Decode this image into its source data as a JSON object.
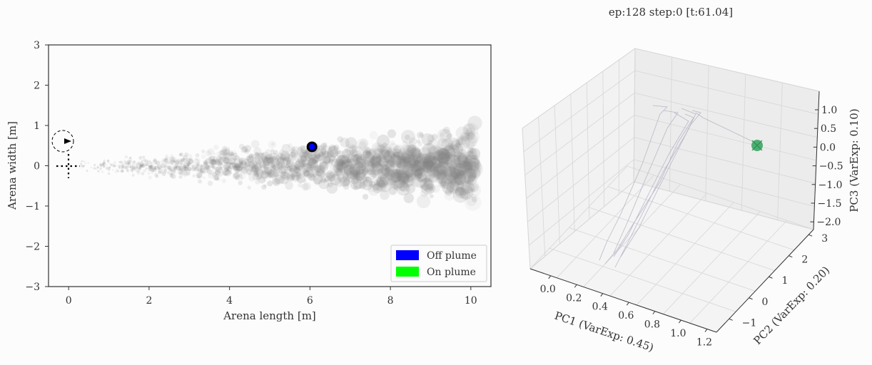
{
  "title": "ep:128 step:0 [t:61.04]",
  "chart_data": [
    {
      "type": "scatter",
      "xlabel": "Arena length [m]",
      "ylabel": "Arena width [m]",
      "xlim": [
        -0.5,
        10.5
      ],
      "ylim": [
        -3,
        3
      ],
      "xticks": [
        0,
        2,
        4,
        6,
        8,
        10
      ],
      "yticks": [
        -3,
        -2,
        -1,
        0,
        1,
        2,
        3
      ],
      "xtick_labels": [
        "0",
        "2",
        "4",
        "6",
        "8",
        "10"
      ],
      "ytick_labels": [
        "−3",
        "−2",
        "−1",
        "0",
        "1",
        "2",
        "3"
      ],
      "plume_source": [
        0,
        0
      ],
      "agent": {
        "x": 6.05,
        "y": 0.47,
        "state": "Off plume"
      },
      "wind_indicator": {
        "x": -0.15,
        "y": 0.6
      },
      "legend": {
        "placement": "lower-right",
        "entries": [
          {
            "label": "Off plume",
            "color": "#0000ff"
          },
          {
            "label": "On plume",
            "color": "#00ff00"
          }
        ]
      },
      "colors": {
        "plume": "#808080",
        "agent_edge": "#000000",
        "agent_fill": "#0000ff"
      }
    },
    {
      "type": "line",
      "projection": "3d",
      "xlabel": "PC1 (VarExp: 0.45)",
      "ylabel": "PC2 (VarExp: 0.20)",
      "zlabel": "PC3 (VarExp: 0.10)",
      "xticks": [
        "0.0",
        "0.2",
        "0.4",
        "0.6",
        "0.8",
        "1.0",
        "1.2"
      ],
      "yticks": [
        "−1",
        "0",
        "1",
        "2",
        "3"
      ],
      "zticks": [
        "1.0",
        "0.5",
        "0.0",
        "−0.5",
        "−1.0",
        "−1.5",
        "−2.0"
      ],
      "xlim": [
        -0.1,
        1.3
      ],
      "ylim": [
        -1.5,
        3
      ],
      "zlim": [
        -2.1,
        1.3
      ],
      "current_point_color": "#4caf70",
      "trajectory_color": "#b8b8c8"
    }
  ]
}
